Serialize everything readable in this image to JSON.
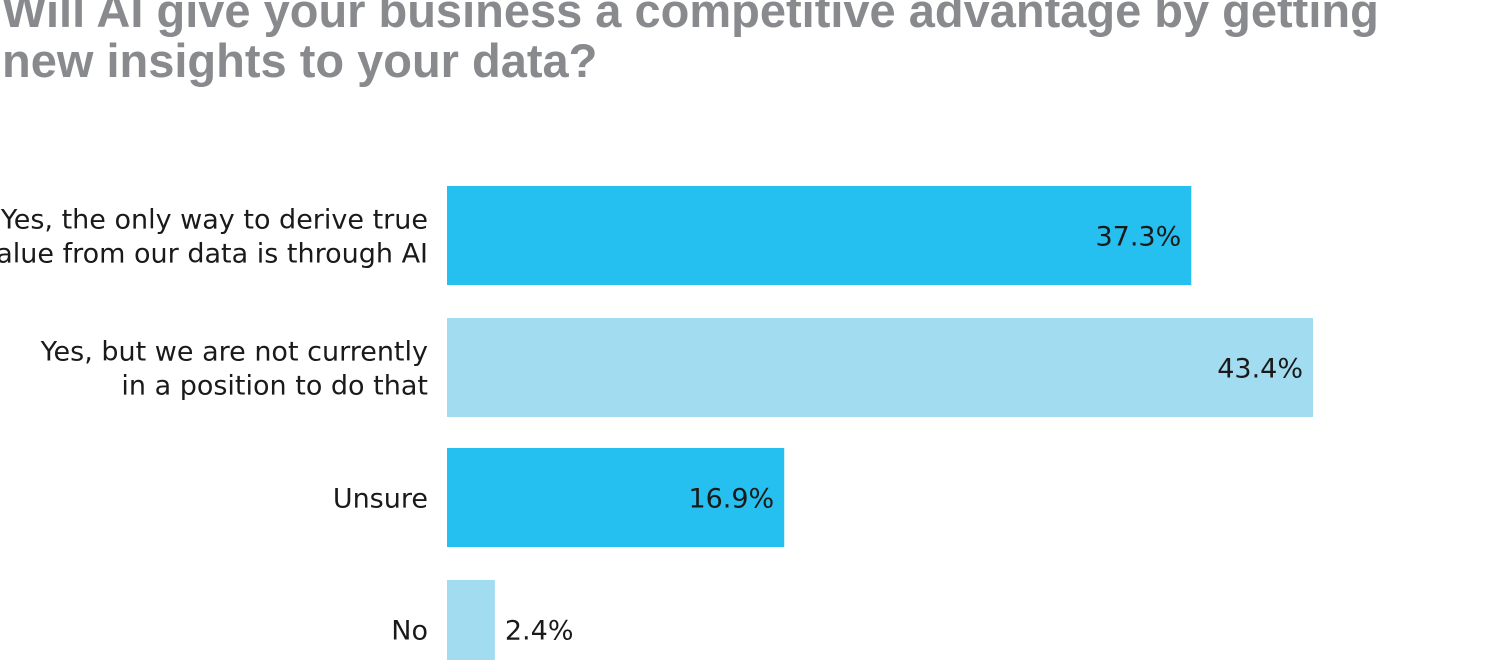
{
  "chart_data": {
    "type": "bar",
    "orientation": "horizontal",
    "title_lines": [
      "Will AI give your business a competitive advantage by getting",
      "new insights to your data?"
    ],
    "categories": [
      [
        "Yes, the only way to derive true",
        "value from our data is through AI"
      ],
      [
        "Yes, but we are not currently",
        "in a position to do that"
      ],
      [
        "Unsure"
      ],
      [
        "No"
      ]
    ],
    "values": [
      37.3,
      43.4,
      16.9,
      2.4
    ],
    "value_labels": [
      "37.3%",
      "43.4%",
      "16.9%",
      "2.4%"
    ],
    "bar_colors": [
      "#25bff0",
      "#a2dcf0",
      "#25bff0",
      "#a2dcf0"
    ],
    "xlim": [
      0,
      43.4
    ],
    "grid": false,
    "legend": "none"
  }
}
